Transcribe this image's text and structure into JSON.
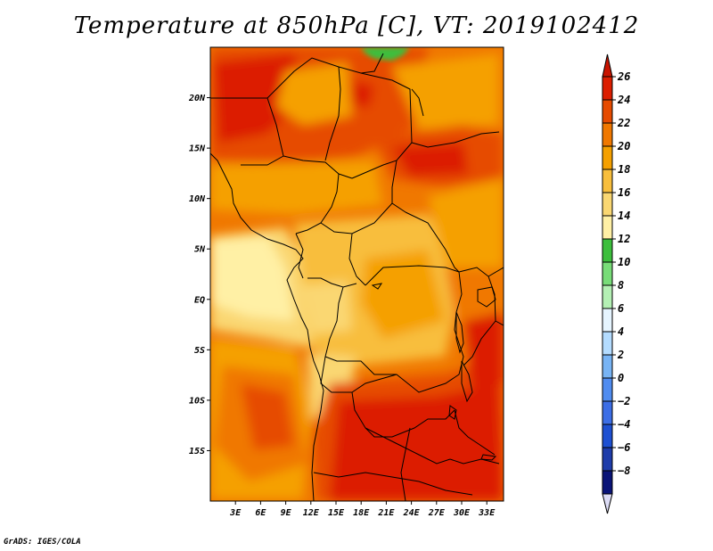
{
  "title": "Temperature at 850hPa [C], VT: 2019102412",
  "credit": "GrADS: IGES/COLA",
  "map": {
    "region": "Central Africa",
    "lon_range": [
      0,
      35
    ],
    "lat_range": [
      -20,
      25
    ],
    "lon_labels": [
      {
        "lon": 3,
        "label": "3E"
      },
      {
        "lon": 6,
        "label": "6E"
      },
      {
        "lon": 9,
        "label": "9E"
      },
      {
        "lon": 12,
        "label": "12E"
      },
      {
        "lon": 15,
        "label": "15E"
      },
      {
        "lon": 18,
        "label": "18E"
      },
      {
        "lon": 21,
        "label": "21E"
      },
      {
        "lon": 24,
        "label": "24E"
      },
      {
        "lon": 27,
        "label": "27E"
      },
      {
        "lon": 30,
        "label": "30E"
      },
      {
        "lon": 33,
        "label": "33E"
      }
    ],
    "lat_labels": [
      {
        "lat": 20,
        "label": "20N"
      },
      {
        "lat": 15,
        "label": "15N"
      },
      {
        "lat": 10,
        "label": "10N"
      },
      {
        "lat": 5,
        "label": "5N"
      },
      {
        "lat": 0,
        "label": "EQ"
      },
      {
        "lat": -5,
        "label": "5S"
      },
      {
        "lat": -10,
        "label": "10S"
      },
      {
        "lat": -15,
        "label": "15S"
      }
    ]
  },
  "colorbar": {
    "levels": [
      {
        "label": "26",
        "color": "#dc1e00"
      },
      {
        "label": "24",
        "color": "#e64b00"
      },
      {
        "label": "22",
        "color": "#f07800"
      },
      {
        "label": "20",
        "color": "#f5a000"
      },
      {
        "label": "18",
        "color": "#f8be3c"
      },
      {
        "label": "16",
        "color": "#fad772"
      },
      {
        "label": "14",
        "color": "#fff0a5"
      },
      {
        "label": "12",
        "color": "#3cbe3c"
      },
      {
        "label": "10",
        "color": "#78dc78"
      },
      {
        "label": "8",
        "color": "#b4f0b4"
      },
      {
        "label": "6",
        "color": "#e6f5ff"
      },
      {
        "label": "4",
        "color": "#b4dcff"
      },
      {
        "label": "2",
        "color": "#78b4f5"
      },
      {
        "label": "0",
        "color": "#508cf0"
      },
      {
        "label": "−2",
        "color": "#3c6ee6"
      },
      {
        "label": "−4",
        "color": "#1e50d2"
      },
      {
        "label": "−6",
        "color": "#1e3caa"
      },
      {
        "label": "−8",
        "color": "#0a1478"
      }
    ],
    "overflow_top_color": "#c81400",
    "overflow_bottom_color": "#dcdcf5"
  }
}
